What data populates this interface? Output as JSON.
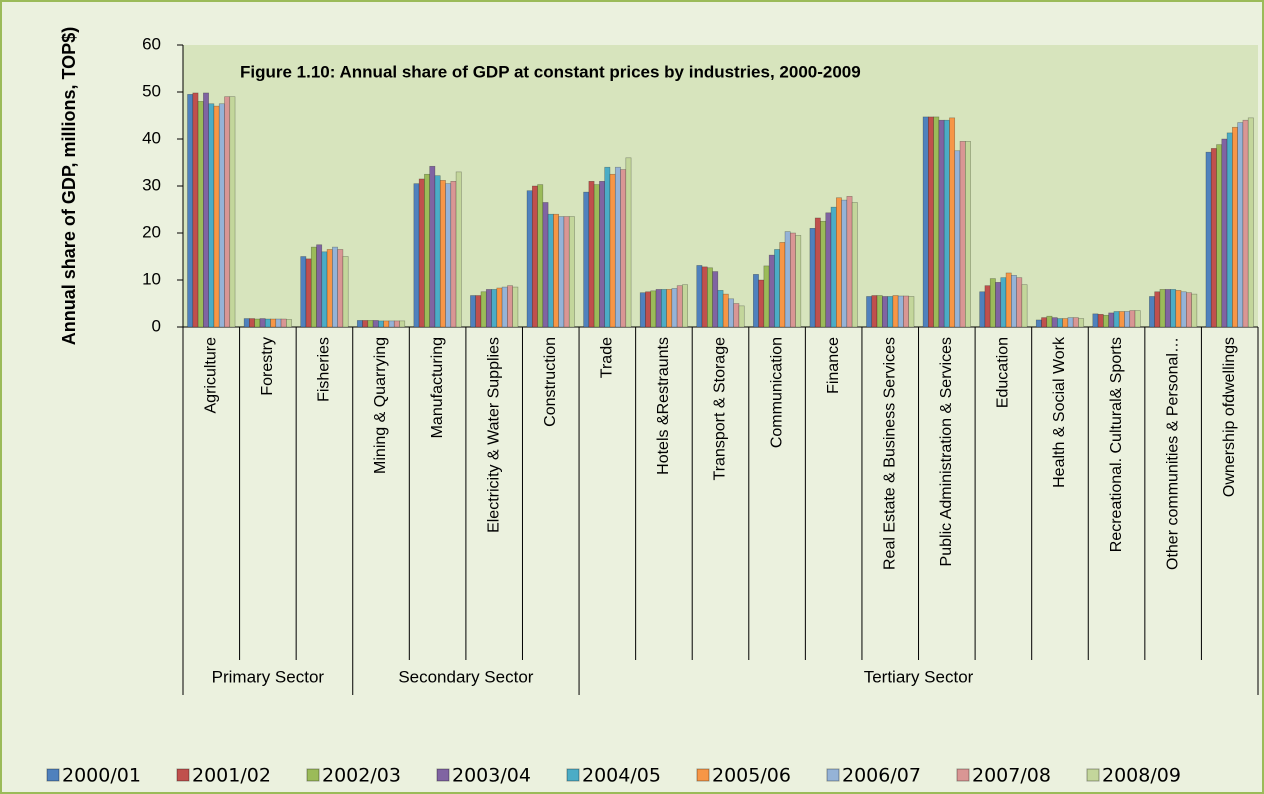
{
  "chart_data": {
    "type": "bar",
    "title": "Figure 1.10: Annual share of GDP at constant prices by industries, 2000-2009",
    "y_label": "Annual share of GDP, millions, TOP$)",
    "groups": [
      {
        "name": "Primary Sector",
        "categories": [
          "Agriculture",
          "Forestry",
          "Fisheries"
        ]
      },
      {
        "name": "Secondary Sector",
        "categories": [
          "Mining & Quarrying",
          "Manufacturing",
          "Electricity & Water Supplies",
          "Construction"
        ]
      },
      {
        "name": "Tertiary  Sector",
        "categories": [
          "Trade",
          "Hotels &Restraunts",
          "Transport & Storage",
          "Communication",
          "Finance",
          "Real Estate & Business Services",
          "Public Administration & Services",
          "Education",
          "Health & Social Work",
          "Recreational. Cultural& Sports",
          "Other communities & Personal…",
          "Ownership ofdwellings"
        ]
      }
    ],
    "series": [
      {
        "name": "2000/01",
        "color": "#4f81bd",
        "values": [
          49.5,
          1.8,
          15,
          1.4,
          30.5,
          6.7,
          29,
          28.7,
          7.3,
          13.1,
          11.2,
          21,
          6.5,
          44.7,
          7.5,
          1.5,
          2.8,
          6.5,
          37.2
        ]
      },
      {
        "name": "2001/02",
        "color": "#c0504d",
        "values": [
          49.8,
          1.8,
          14.5,
          1.4,
          31.5,
          6.7,
          30,
          31,
          7.5,
          12.8,
          10,
          23.2,
          6.7,
          44.7,
          8.8,
          2,
          2.7,
          7.5,
          38
        ]
      },
      {
        "name": "2002/03",
        "color": "#9bbb59",
        "values": [
          48,
          1.7,
          17,
          1.4,
          32.5,
          7.5,
          30.3,
          30.3,
          7.7,
          12.6,
          13,
          22.5,
          6.7,
          44.7,
          10.3,
          2.3,
          2.5,
          8,
          38.8
        ]
      },
      {
        "name": "2003/04",
        "color": "#8064a2",
        "values": [
          49.8,
          1.8,
          17.5,
          1.4,
          34.2,
          8,
          26.5,
          31,
          8,
          11.8,
          15.3,
          24.3,
          6.5,
          44,
          9.5,
          2,
          3,
          8,
          40
        ]
      },
      {
        "name": "2004/05",
        "color": "#4bacc6",
        "values": [
          47.5,
          1.7,
          16,
          1.3,
          32.2,
          8,
          24,
          34,
          8,
          7.8,
          16.5,
          25.5,
          6.5,
          44,
          10.5,
          1.8,
          3.3,
          8,
          41.3
        ]
      },
      {
        "name": "2005/06",
        "color": "#f79646",
        "values": [
          47,
          1.7,
          16.5,
          1.3,
          31.2,
          8.3,
          24,
          32.5,
          8,
          7,
          18,
          27.5,
          6.7,
          44.5,
          11.5,
          1.8,
          3.3,
          7.8,
          42.5
        ]
      },
      {
        "name": "2006/07",
        "color": "#95b3d7",
        "values": [
          47.5,
          1.7,
          17,
          1.3,
          30.5,
          8.5,
          23.5,
          34,
          8.2,
          6,
          20.3,
          27,
          6.6,
          37.5,
          11,
          2,
          3.3,
          7.5,
          43.5
        ]
      },
      {
        "name": "2007/08",
        "color": "#d99694",
        "values": [
          49,
          1.7,
          16.5,
          1.3,
          31,
          8.8,
          23.5,
          33.5,
          8.8,
          5,
          20,
          27.8,
          6.6,
          39.5,
          10.5,
          2,
          3.5,
          7.3,
          44
        ]
      },
      {
        "name": "2008/09",
        "color": "#c3d69b",
        "values": [
          49,
          1.6,
          15,
          1.3,
          33,
          8.5,
          23.5,
          36,
          9,
          4.5,
          19.5,
          26.5,
          6.5,
          39.5,
          9,
          1.8,
          3.5,
          7,
          44.5
        ]
      }
    ],
    "ylim": [
      0,
      60
    ],
    "yticks": [
      0,
      10,
      20,
      30,
      40,
      50,
      60
    ],
    "grid": false,
    "legend": "bottom"
  }
}
